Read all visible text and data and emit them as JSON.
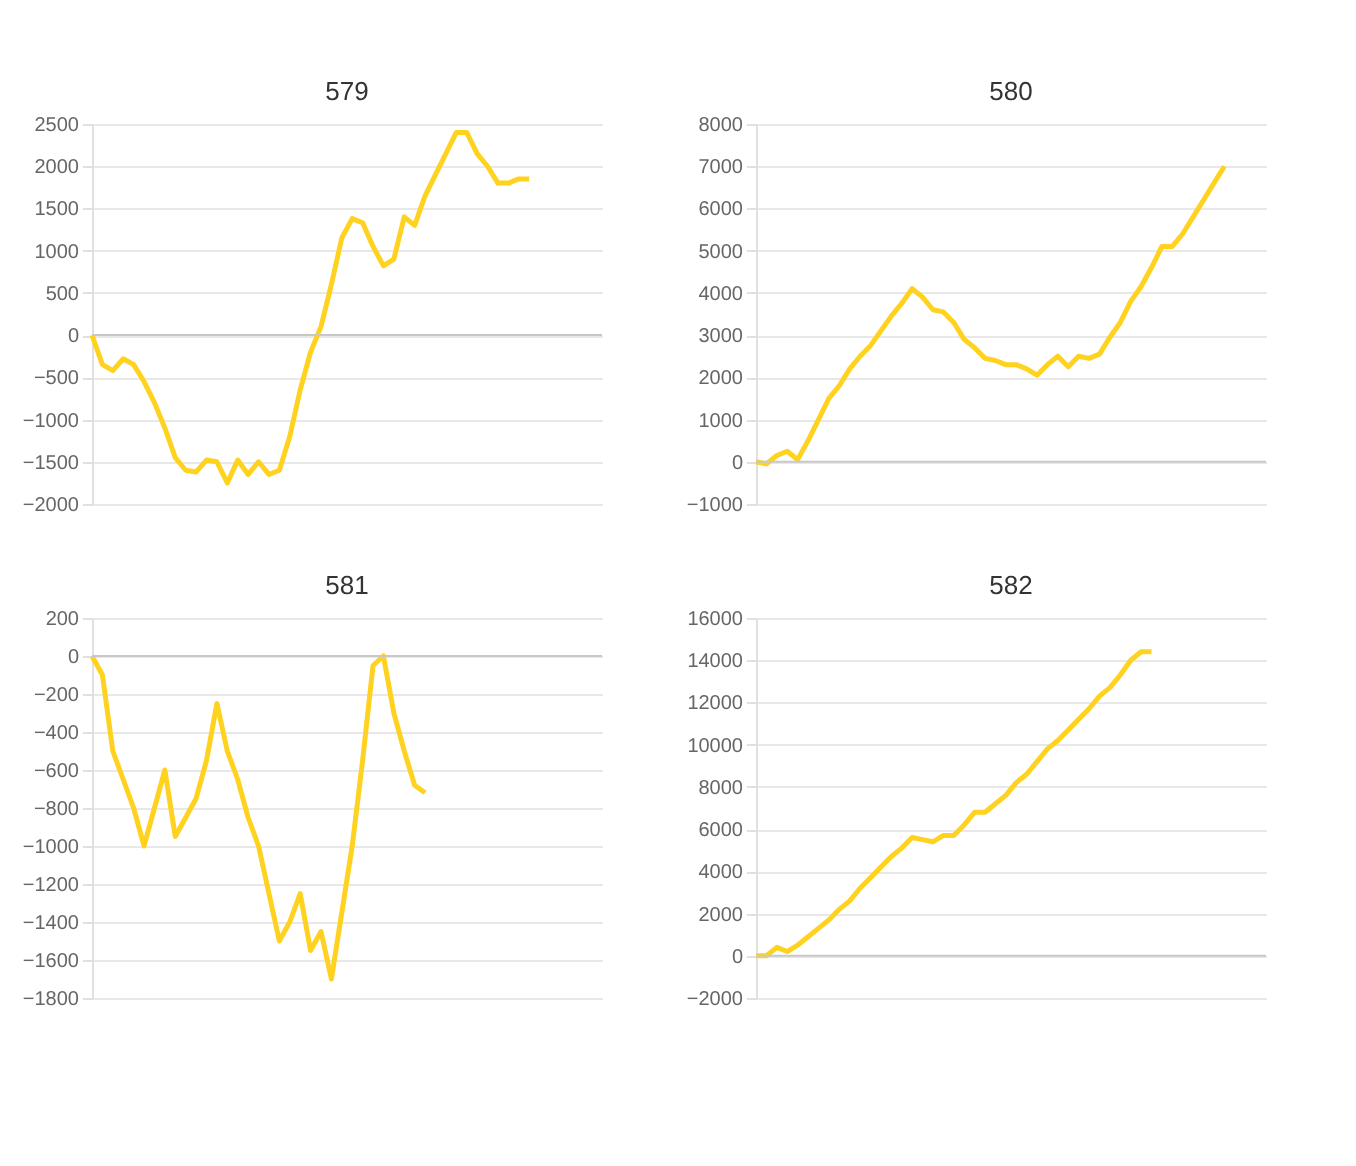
{
  "chart_data": [
    {
      "type": "line",
      "title": "579",
      "categories": [
        null,
        null,
        null,
        null,
        null,
        null,
        null,
        null,
        null,
        null,
        null,
        null,
        null,
        null,
        null,
        null,
        null,
        null,
        null,
        null,
        null,
        null,
        null,
        null,
        null,
        null,
        null,
        null,
        null,
        null,
        null,
        null,
        null,
        null,
        null,
        null,
        null,
        null,
        null,
        null,
        null,
        null,
        null,
        null,
        null,
        null,
        null,
        null,
        null,
        null
      ],
      "series": [
        {
          "color": "#ffd21f",
          "values": [
            0,
            -350,
            -420,
            -280,
            -350,
            -550,
            -800,
            -1100,
            -1450,
            -1600,
            -1620,
            -1480,
            -1500,
            -1750,
            -1480,
            -1650,
            -1500,
            -1650,
            -1600,
            -1200,
            -650,
            -200,
            100,
            600,
            1150,
            1380,
            1330,
            1050,
            820,
            900,
            1400,
            1300,
            1650,
            1900,
            2150,
            2400,
            2400,
            2150,
            2000,
            1800,
            1800,
            1850,
            1850,
            null,
            null,
            null,
            null,
            null,
            null,
            null
          ]
        }
      ],
      "ylim": [
        -2000,
        2500
      ],
      "yticks": [
        -2000,
        -1500,
        -1000,
        -500,
        0,
        500,
        1000,
        1500,
        2000,
        2500
      ],
      "grid": "y",
      "tick_labels": "y"
    },
    {
      "type": "line",
      "title": "580",
      "categories": [
        null,
        null,
        null,
        null,
        null,
        null,
        null,
        null,
        null,
        null,
        null,
        null,
        null,
        null,
        null,
        null,
        null,
        null,
        null,
        null,
        null,
        null,
        null,
        null,
        null,
        null,
        null,
        null,
        null,
        null,
        null,
        null,
        null,
        null,
        null,
        null,
        null,
        null,
        null,
        null,
        null,
        null,
        null,
        null,
        null,
        null,
        null,
        null,
        null,
        null
      ],
      "series": [
        {
          "color": "#ffd21f",
          "values": [
            0,
            -50,
            150,
            250,
            50,
            500,
            1000,
            1500,
            1800,
            2200,
            2500,
            2750,
            3100,
            3450,
            3750,
            4100,
            3900,
            3600,
            3550,
            3300,
            2900,
            2700,
            2450,
            2400,
            2300,
            2300,
            2200,
            2050,
            2300,
            2500,
            2250,
            2500,
            2450,
            2550,
            2950,
            3300,
            3800,
            4150,
            4600,
            5100,
            5100,
            5400,
            5800,
            6200,
            6600,
            7000,
            null,
            null,
            null,
            null
          ]
        }
      ],
      "ylim": [
        -1000,
        8000
      ],
      "yticks": [
        -1000,
        0,
        1000,
        2000,
        3000,
        4000,
        5000,
        6000,
        7000,
        8000
      ],
      "grid": "y",
      "tick_labels": "y"
    },
    {
      "type": "line",
      "title": "581",
      "categories": [
        null,
        null,
        null,
        null,
        null,
        null,
        null,
        null,
        null,
        null,
        null,
        null,
        null,
        null,
        null,
        null,
        null,
        null,
        null,
        null,
        null,
        null,
        null,
        null,
        null,
        null,
        null,
        null,
        null,
        null,
        null,
        null,
        null,
        null,
        null,
        null,
        null,
        null,
        null,
        null,
        null,
        null,
        null,
        null,
        null,
        null,
        null,
        null,
        null,
        null
      ],
      "series": [
        {
          "color": "#ffd21f",
          "values": [
            0,
            -100,
            -500,
            -650,
            -800,
            -1000,
            -800,
            -600,
            -950,
            -850,
            -750,
            -550,
            -250,
            -500,
            -650,
            -850,
            -1000,
            -1250,
            -1500,
            -1400,
            -1250,
            -1550,
            -1450,
            -1700,
            -1350,
            -1000,
            -550,
            -50,
            0,
            -300,
            -500,
            -680,
            -720,
            null,
            null,
            null,
            null,
            null,
            null,
            null,
            null,
            null,
            null,
            null,
            null,
            null,
            null,
            null,
            null,
            null
          ]
        }
      ],
      "ylim": [
        -1800,
        200
      ],
      "yticks": [
        -1800,
        -1600,
        -1400,
        -1200,
        -1000,
        -800,
        -600,
        -400,
        -200,
        0,
        200
      ],
      "grid": "y",
      "tick_labels": "y"
    },
    {
      "type": "line",
      "title": "582",
      "categories": [
        null,
        null,
        null,
        null,
        null,
        null,
        null,
        null,
        null,
        null,
        null,
        null,
        null,
        null,
        null,
        null,
        null,
        null,
        null,
        null,
        null,
        null,
        null,
        null,
        null,
        null,
        null,
        null,
        null,
        null,
        null,
        null,
        null,
        null,
        null,
        null,
        null,
        null,
        null,
        null,
        null,
        null,
        null,
        null,
        null,
        null,
        null,
        null,
        null,
        null
      ],
      "series": [
        {
          "color": "#ffd21f",
          "values": [
            0,
            0,
            400,
            200,
            500,
            900,
            1300,
            1700,
            2200,
            2600,
            3200,
            3700,
            4200,
            4700,
            5100,
            5600,
            5500,
            5400,
            5700,
            5700,
            6200,
            6800,
            6800,
            7200,
            7600,
            8200,
            8600,
            9200,
            9800,
            10200,
            10700,
            11200,
            11700,
            12300,
            12700,
            13300,
            14000,
            14400,
            14400,
            null,
            null,
            null,
            null,
            null,
            null,
            null,
            null,
            null,
            null,
            null
          ]
        }
      ],
      "ylim": [
        -2000,
        16000
      ],
      "yticks": [
        -2000,
        0,
        2000,
        4000,
        6000,
        8000,
        10000,
        12000,
        14000,
        16000
      ],
      "grid": "y",
      "tick_labels": "y"
    }
  ]
}
